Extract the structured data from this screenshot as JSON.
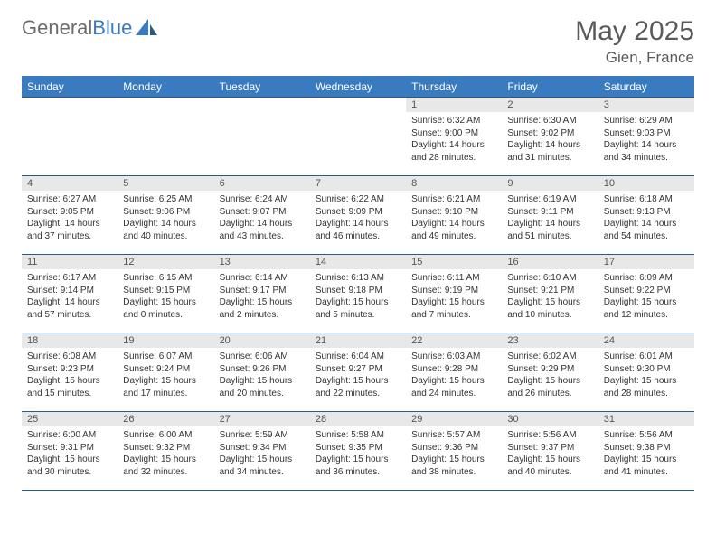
{
  "logo": {
    "text1": "General",
    "text2": "Blue"
  },
  "title": "May 2025",
  "location": "Gien, France",
  "colors": {
    "header_bg": "#3a7bbf",
    "header_text": "#ffffff",
    "daynum_bg": "#e8e8e8",
    "border": "#2a5a8a",
    "title_color": "#5a5a5a",
    "body_text": "#333333"
  },
  "day_names": [
    "Sunday",
    "Monday",
    "Tuesday",
    "Wednesday",
    "Thursday",
    "Friday",
    "Saturday"
  ],
  "weeks": [
    [
      null,
      null,
      null,
      null,
      {
        "n": "1",
        "sr": "6:32 AM",
        "ss": "9:00 PM",
        "dl": "14 hours and 28 minutes."
      },
      {
        "n": "2",
        "sr": "6:30 AM",
        "ss": "9:02 PM",
        "dl": "14 hours and 31 minutes."
      },
      {
        "n": "3",
        "sr": "6:29 AM",
        "ss": "9:03 PM",
        "dl": "14 hours and 34 minutes."
      }
    ],
    [
      {
        "n": "4",
        "sr": "6:27 AM",
        "ss": "9:05 PM",
        "dl": "14 hours and 37 minutes."
      },
      {
        "n": "5",
        "sr": "6:25 AM",
        "ss": "9:06 PM",
        "dl": "14 hours and 40 minutes."
      },
      {
        "n": "6",
        "sr": "6:24 AM",
        "ss": "9:07 PM",
        "dl": "14 hours and 43 minutes."
      },
      {
        "n": "7",
        "sr": "6:22 AM",
        "ss": "9:09 PM",
        "dl": "14 hours and 46 minutes."
      },
      {
        "n": "8",
        "sr": "6:21 AM",
        "ss": "9:10 PM",
        "dl": "14 hours and 49 minutes."
      },
      {
        "n": "9",
        "sr": "6:19 AM",
        "ss": "9:11 PM",
        "dl": "14 hours and 51 minutes."
      },
      {
        "n": "10",
        "sr": "6:18 AM",
        "ss": "9:13 PM",
        "dl": "14 hours and 54 minutes."
      }
    ],
    [
      {
        "n": "11",
        "sr": "6:17 AM",
        "ss": "9:14 PM",
        "dl": "14 hours and 57 minutes."
      },
      {
        "n": "12",
        "sr": "6:15 AM",
        "ss": "9:15 PM",
        "dl": "15 hours and 0 minutes."
      },
      {
        "n": "13",
        "sr": "6:14 AM",
        "ss": "9:17 PM",
        "dl": "15 hours and 2 minutes."
      },
      {
        "n": "14",
        "sr": "6:13 AM",
        "ss": "9:18 PM",
        "dl": "15 hours and 5 minutes."
      },
      {
        "n": "15",
        "sr": "6:11 AM",
        "ss": "9:19 PM",
        "dl": "15 hours and 7 minutes."
      },
      {
        "n": "16",
        "sr": "6:10 AM",
        "ss": "9:21 PM",
        "dl": "15 hours and 10 minutes."
      },
      {
        "n": "17",
        "sr": "6:09 AM",
        "ss": "9:22 PM",
        "dl": "15 hours and 12 minutes."
      }
    ],
    [
      {
        "n": "18",
        "sr": "6:08 AM",
        "ss": "9:23 PM",
        "dl": "15 hours and 15 minutes."
      },
      {
        "n": "19",
        "sr": "6:07 AM",
        "ss": "9:24 PM",
        "dl": "15 hours and 17 minutes."
      },
      {
        "n": "20",
        "sr": "6:06 AM",
        "ss": "9:26 PM",
        "dl": "15 hours and 20 minutes."
      },
      {
        "n": "21",
        "sr": "6:04 AM",
        "ss": "9:27 PM",
        "dl": "15 hours and 22 minutes."
      },
      {
        "n": "22",
        "sr": "6:03 AM",
        "ss": "9:28 PM",
        "dl": "15 hours and 24 minutes."
      },
      {
        "n": "23",
        "sr": "6:02 AM",
        "ss": "9:29 PM",
        "dl": "15 hours and 26 minutes."
      },
      {
        "n": "24",
        "sr": "6:01 AM",
        "ss": "9:30 PM",
        "dl": "15 hours and 28 minutes."
      }
    ],
    [
      {
        "n": "25",
        "sr": "6:00 AM",
        "ss": "9:31 PM",
        "dl": "15 hours and 30 minutes."
      },
      {
        "n": "26",
        "sr": "6:00 AM",
        "ss": "9:32 PM",
        "dl": "15 hours and 32 minutes."
      },
      {
        "n": "27",
        "sr": "5:59 AM",
        "ss": "9:34 PM",
        "dl": "15 hours and 34 minutes."
      },
      {
        "n": "28",
        "sr": "5:58 AM",
        "ss": "9:35 PM",
        "dl": "15 hours and 36 minutes."
      },
      {
        "n": "29",
        "sr": "5:57 AM",
        "ss": "9:36 PM",
        "dl": "15 hours and 38 minutes."
      },
      {
        "n": "30",
        "sr": "5:56 AM",
        "ss": "9:37 PM",
        "dl": "15 hours and 40 minutes."
      },
      {
        "n": "31",
        "sr": "5:56 AM",
        "ss": "9:38 PM",
        "dl": "15 hours and 41 minutes."
      }
    ]
  ],
  "labels": {
    "sunrise": "Sunrise:",
    "sunset": "Sunset:",
    "daylight": "Daylight:"
  }
}
